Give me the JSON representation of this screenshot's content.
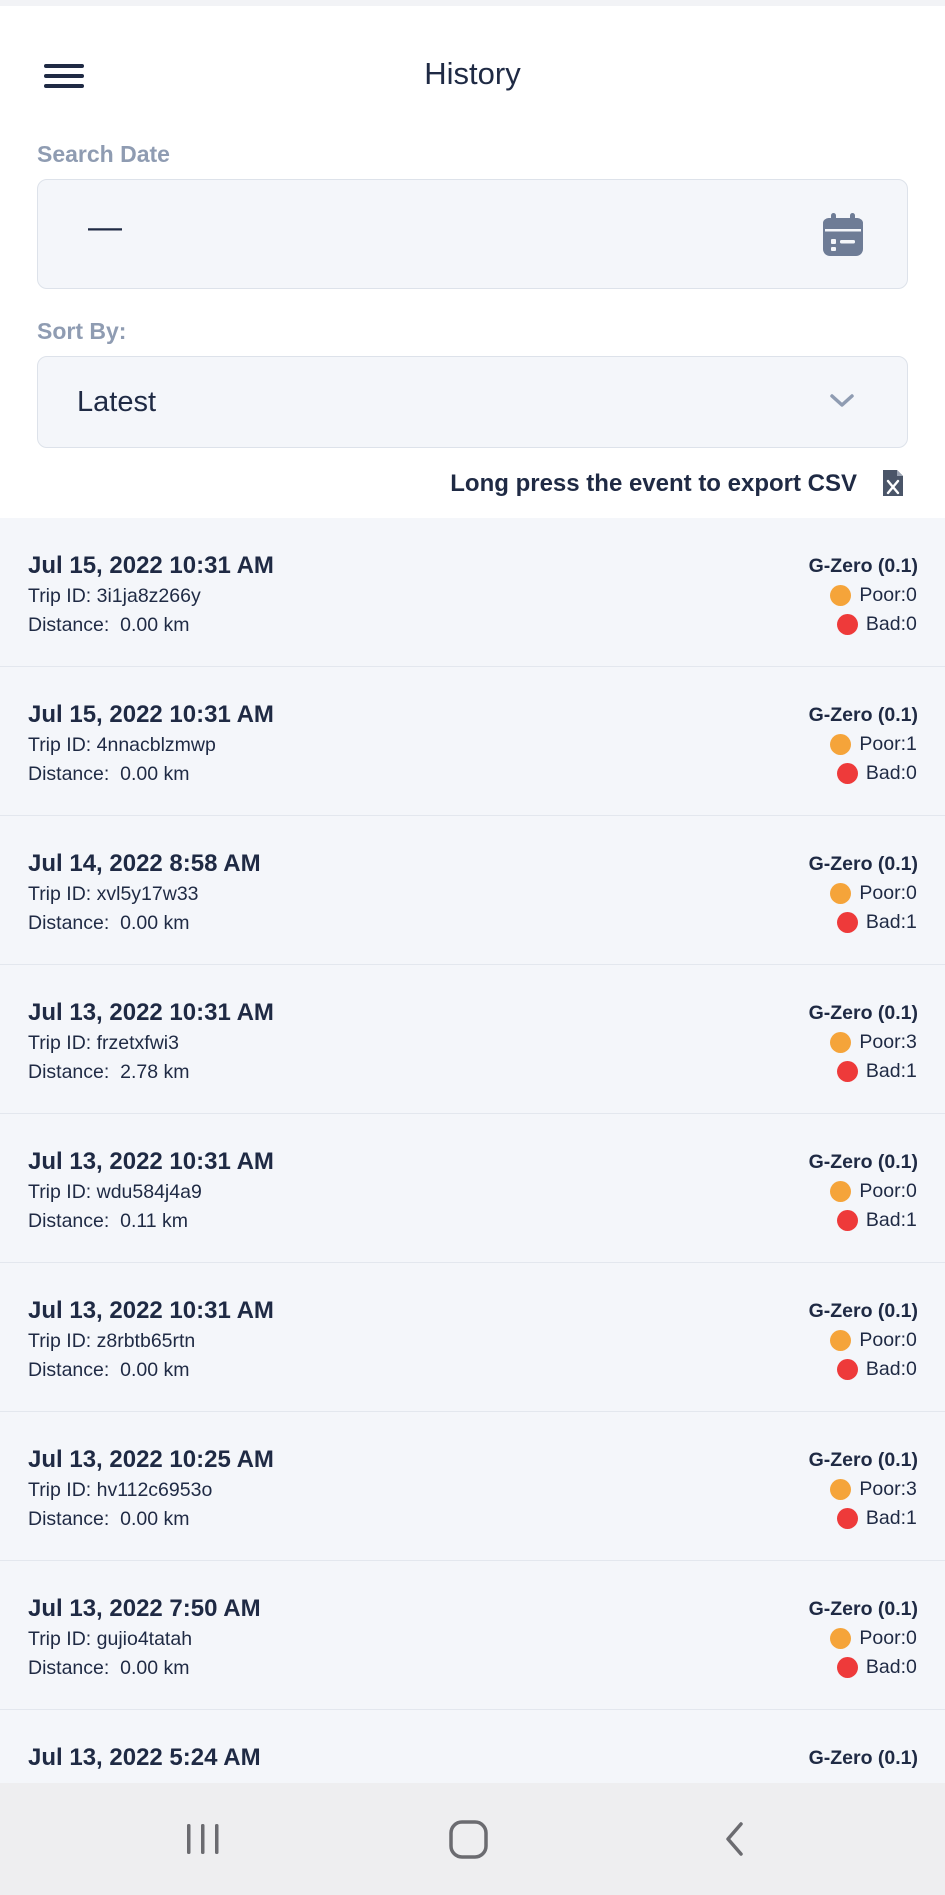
{
  "header": {
    "title": "History"
  },
  "search": {
    "label": "Search Date",
    "value": "—"
  },
  "sort": {
    "label": "Sort By:",
    "value": "Latest"
  },
  "export": {
    "hint": "Long press the event to export CSV"
  },
  "list_labels": {
    "trip": "Trip ID: ",
    "distance": "Distance:  ",
    "poor": "Poor: ",
    "bad": "Bad: "
  },
  "colors": {
    "poor": "#f5a43a",
    "bad": "#ee3a3a",
    "text": "#1f2a44",
    "label": "#8f9cb2"
  },
  "trips": [
    {
      "datetime": "Jul 15, 2022 10:31 AM",
      "trip_id": "3i1ja8z266y",
      "distance": "0.00 km",
      "device": "G-Zero (0.1)",
      "poor": "0",
      "bad": "0"
    },
    {
      "datetime": "Jul 15, 2022 10:31 AM",
      "trip_id": "4nnacblzmwp",
      "distance": "0.00 km",
      "device": "G-Zero (0.1)",
      "poor": "1",
      "bad": "0"
    },
    {
      "datetime": "Jul 14, 2022 8:58 AM",
      "trip_id": "xvl5y17w33",
      "distance": "0.00 km",
      "device": "G-Zero (0.1)",
      "poor": "0",
      "bad": "1"
    },
    {
      "datetime": "Jul 13, 2022 10:31 AM",
      "trip_id": "frzetxfwi3",
      "distance": "2.78 km",
      "device": "G-Zero (0.1)",
      "poor": "3",
      "bad": "1"
    },
    {
      "datetime": "Jul 13, 2022 10:31 AM",
      "trip_id": "wdu584j4a9",
      "distance": "0.11 km",
      "device": "G-Zero (0.1)",
      "poor": "0",
      "bad": "1"
    },
    {
      "datetime": "Jul 13, 2022 10:31 AM",
      "trip_id": "z8rbtb65rtn",
      "distance": "0.00 km",
      "device": "G-Zero (0.1)",
      "poor": "0",
      "bad": "0"
    },
    {
      "datetime": "Jul 13, 2022 10:25 AM",
      "trip_id": "hv112c6953o",
      "distance": "0.00 km",
      "device": "G-Zero (0.1)",
      "poor": "3",
      "bad": "1"
    },
    {
      "datetime": "Jul 13, 2022 7:50 AM",
      "trip_id": "gujio4tatah",
      "distance": "0.00 km",
      "device": "G-Zero (0.1)",
      "poor": "0",
      "bad": "0"
    },
    {
      "datetime": "Jul 13, 2022 5:24 AM",
      "trip_id": "",
      "distance": "",
      "device": "G-Zero (0.1)",
      "poor": "",
      "bad": ""
    }
  ]
}
